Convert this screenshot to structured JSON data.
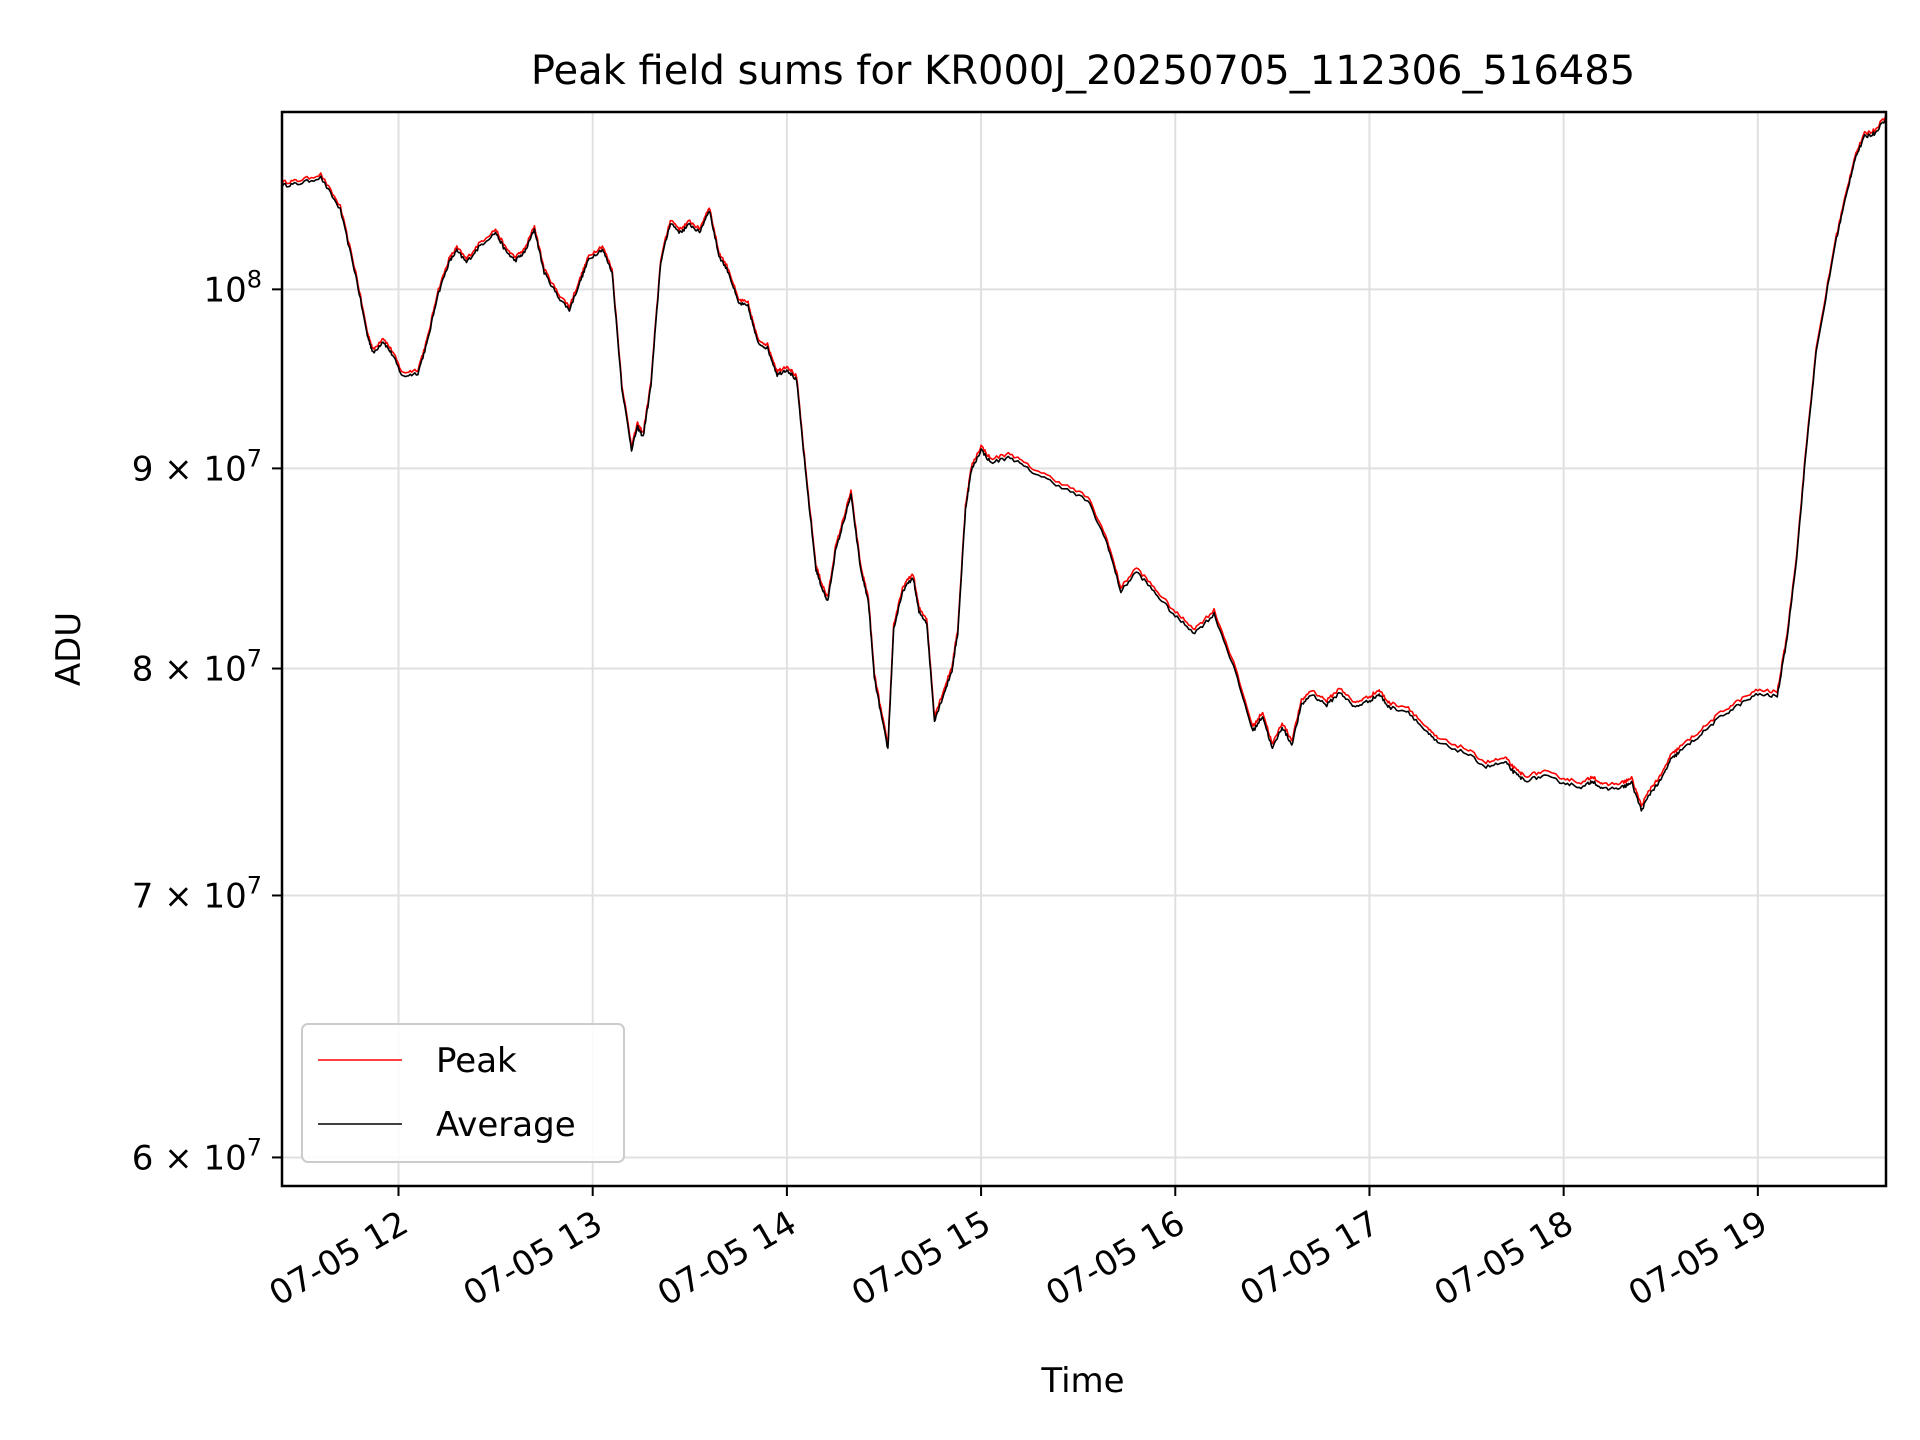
{
  "chart_data": {
    "type": "line",
    "title": "Peak field sums for KR000J_20250705_112306_516485",
    "xlabel": "Time",
    "ylabel": "ADU",
    "x_ticks": [
      "07-05 12",
      "07-05 13",
      "07-05 14",
      "07-05 15",
      "07-05 16",
      "07-05 17",
      "07-05 18",
      "07-05 19"
    ],
    "x_tick_hours": [
      12,
      13,
      14,
      15,
      16,
      17,
      18,
      19
    ],
    "xlim_hours": [
      11.4,
      19.66
    ],
    "y_scale": "log",
    "ylim": [
      59000000,
      111000000
    ],
    "y_ticks": [
      {
        "value": 60000000,
        "mantissa": "6",
        "exponent": "7"
      },
      {
        "value": 70000000,
        "mantissa": "7",
        "exponent": "7"
      },
      {
        "value": 80000000,
        "mantissa": "8",
        "exponent": "7"
      },
      {
        "value": 90000000,
        "mantissa": "9",
        "exponent": "7"
      },
      {
        "value": 100000000,
        "mantissa": "",
        "exponent": "8"
      }
    ],
    "y_tick_base": "10",
    "y_tick_times": "×",
    "grid": true,
    "legend_position": "lower-left",
    "series": [
      {
        "name": "Peak",
        "color": "#ff0000",
        "x_hours": [
          11.4,
          11.48,
          11.6,
          11.7,
          11.78,
          11.84,
          11.87,
          11.92,
          11.97,
          12.02,
          12.1,
          12.15,
          12.2,
          12.26,
          12.3,
          12.35,
          12.42,
          12.5,
          12.55,
          12.6,
          12.65,
          12.7,
          12.75,
          12.82,
          12.88,
          12.94,
          12.98,
          13.05,
          13.1,
          13.15,
          13.2,
          13.23,
          13.26,
          13.3,
          13.35,
          13.4,
          13.45,
          13.5,
          13.55,
          13.6,
          13.65,
          13.7,
          13.75,
          13.8,
          13.85,
          13.9,
          13.95,
          14.0,
          14.05,
          14.1,
          14.15,
          14.18,
          14.21,
          14.25,
          14.3,
          14.33,
          14.38,
          14.42,
          14.45,
          14.48,
          14.52,
          14.55,
          14.6,
          14.65,
          14.68,
          14.72,
          14.76,
          14.8,
          14.85,
          14.88,
          14.92,
          14.95,
          15.0,
          15.05,
          15.15,
          15.25,
          15.4,
          15.55,
          15.65,
          15.72,
          15.8,
          15.9,
          16.0,
          16.1,
          16.2,
          16.3,
          16.4,
          16.45,
          16.5,
          16.55,
          16.6,
          16.65,
          16.7,
          16.78,
          16.85,
          16.92,
          17.0,
          17.05,
          17.1,
          17.2,
          17.3,
          17.35,
          17.5,
          17.6,
          17.7,
          17.75,
          17.8,
          17.9,
          18.0,
          18.1,
          18.15,
          18.2,
          18.3,
          18.35,
          18.4,
          18.45,
          18.5,
          18.55,
          18.6,
          18.7,
          18.8,
          18.9,
          19.0,
          19.1,
          19.15,
          19.2,
          19.25,
          19.3,
          19.4,
          19.45,
          19.5,
          19.55,
          19.6,
          19.66
        ],
        "values": [
          106500000,
          106600000,
          107000000,
          105000000,
          101000000,
          97500000,
          96500000,
          97200000,
          96400000,
          95200000,
          95400000,
          97200000,
          99800000,
          101800000,
          102500000,
          101800000,
          102800000,
          103600000,
          102500000,
          101900000,
          102400000,
          103800000,
          101200000,
          99800000,
          99000000,
          100800000,
          102000000,
          102600000,
          101200000,
          94600000,
          91200000,
          92400000,
          91900000,
          94700000,
          101800000,
          104200000,
          103600000,
          104100000,
          103600000,
          105000000,
          102200000,
          101200000,
          99400000,
          99200000,
          97100000,
          96800000,
          95300000,
          95600000,
          95000000,
          89600000,
          85000000,
          84100000,
          83400000,
          85900000,
          87700000,
          88800000,
          85000000,
          83400000,
          79800000,
          78300000,
          76500000,
          82100000,
          84000000,
          84600000,
          82900000,
          82400000,
          77800000,
          78800000,
          80100000,
          81900000,
          88100000,
          90100000,
          91200000,
          90500000,
          90800000,
          90100000,
          89300000,
          88500000,
          86300000,
          83900000,
          84900000,
          83800000,
          82700000,
          81900000,
          82800000,
          80300000,
          77300000,
          78000000,
          76500000,
          77500000,
          76700000,
          78500000,
          79000000,
          78500000,
          79100000,
          78400000,
          78700000,
          79000000,
          78400000,
          78200000,
          77200000,
          76800000,
          76300000,
          75700000,
          75900000,
          75400000,
          75100000,
          75300000,
          75000000,
          74800000,
          75100000,
          74700000,
          74800000,
          75000000,
          73800000,
          74600000,
          75100000,
          76000000,
          76400000,
          77100000,
          77900000,
          78500000,
          79000000,
          78900000,
          81600000,
          85600000,
          91300000,
          96500000,
          103000000,
          105600000,
          108200000,
          109600000,
          109800000,
          110800000
        ]
      },
      {
        "name": "Average",
        "color": "#000000",
        "x_hours": [
          11.4,
          11.48,
          11.6,
          11.7,
          11.78,
          11.84,
          11.87,
          11.92,
          11.97,
          12.02,
          12.1,
          12.15,
          12.2,
          12.26,
          12.3,
          12.35,
          12.42,
          12.5,
          12.55,
          12.6,
          12.65,
          12.7,
          12.75,
          12.82,
          12.88,
          12.94,
          12.98,
          13.05,
          13.1,
          13.15,
          13.2,
          13.23,
          13.26,
          13.3,
          13.35,
          13.4,
          13.45,
          13.5,
          13.55,
          13.6,
          13.65,
          13.7,
          13.75,
          13.8,
          13.85,
          13.9,
          13.95,
          14.0,
          14.05,
          14.1,
          14.15,
          14.18,
          14.21,
          14.25,
          14.3,
          14.33,
          14.38,
          14.42,
          14.45,
          14.48,
          14.52,
          14.55,
          14.6,
          14.65,
          14.68,
          14.72,
          14.76,
          14.8,
          14.85,
          14.88,
          14.92,
          14.95,
          15.0,
          15.05,
          15.15,
          15.25,
          15.4,
          15.55,
          15.65,
          15.72,
          15.8,
          15.9,
          16.0,
          16.1,
          16.2,
          16.3,
          16.4,
          16.45,
          16.5,
          16.55,
          16.6,
          16.65,
          16.7,
          16.78,
          16.85,
          16.92,
          17.0,
          17.05,
          17.1,
          17.2,
          17.3,
          17.35,
          17.5,
          17.6,
          17.7,
          17.75,
          17.8,
          17.9,
          18.0,
          18.1,
          18.15,
          18.2,
          18.3,
          18.35,
          18.4,
          18.45,
          18.5,
          18.55,
          18.6,
          18.7,
          18.8,
          18.9,
          19.0,
          19.1,
          19.15,
          19.2,
          19.25,
          19.3,
          19.4,
          19.45,
          19.5,
          19.55,
          19.6,
          19.66
        ],
        "values": [
          106300000,
          106400000,
          106800000,
          104800000,
          100800000,
          97300000,
          96300000,
          97000000,
          96200000,
          95000000,
          95200000,
          97000000,
          99600000,
          101600000,
          102300000,
          101600000,
          102600000,
          103400000,
          102300000,
          101700000,
          102200000,
          103600000,
          101000000,
          99600000,
          98800000,
          100600000,
          101800000,
          102400000,
          101000000,
          94400000,
          91000000,
          92200000,
          91700000,
          94500000,
          101600000,
          104000000,
          103400000,
          103900000,
          103400000,
          104800000,
          102000000,
          101000000,
          99200000,
          99000000,
          96900000,
          96600000,
          95100000,
          95400000,
          94800000,
          89400000,
          84800000,
          83900000,
          83200000,
          85700000,
          87500000,
          88600000,
          84800000,
          83200000,
          79600000,
          78100000,
          76300000,
          81900000,
          83800000,
          84400000,
          82700000,
          82200000,
          77600000,
          78600000,
          79900000,
          81700000,
          87900000,
          89900000,
          91000000,
          90300000,
          90600000,
          89900000,
          89100000,
          88300000,
          86100000,
          83700000,
          84700000,
          83600000,
          82500000,
          81700000,
          82600000,
          80100000,
          77100000,
          77800000,
          76300000,
          77300000,
          76500000,
          78300000,
          78800000,
          78300000,
          78900000,
          78200000,
          78500000,
          78800000,
          78200000,
          78000000,
          77000000,
          76600000,
          76100000,
          75500000,
          75700000,
          75200000,
          74900000,
          75100000,
          74800000,
          74600000,
          74900000,
          74500000,
          74600000,
          74800000,
          73600000,
          74400000,
          74900000,
          75800000,
          76200000,
          76900000,
          77700000,
          78300000,
          78800000,
          78700000,
          81400000,
          85400000,
          91100000,
          96300000,
          102800000,
          105400000,
          108000000,
          109400000,
          109600000,
          110600000
        ]
      }
    ]
  }
}
